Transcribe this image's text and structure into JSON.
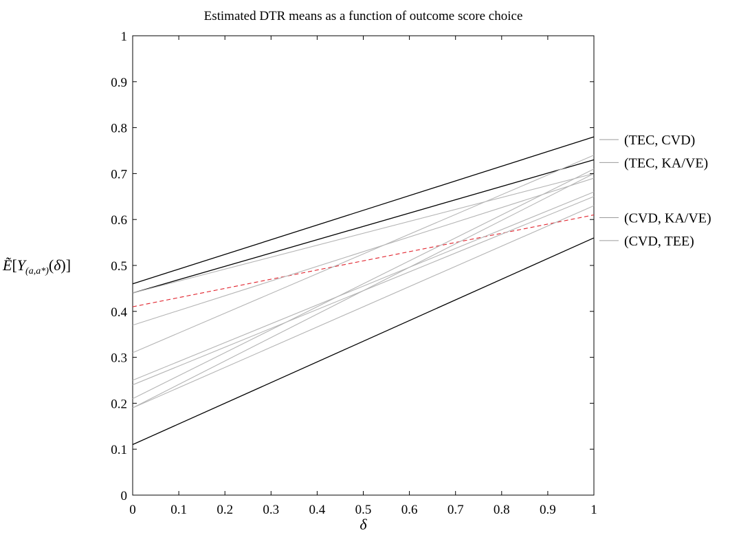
{
  "chart_data": {
    "type": "line",
    "title": "Estimated DTR means as a function of outcome score choice",
    "xlabel": "δ",
    "ylabel": "Ẽ[Y(a,a*)(δ)]",
    "xlim": [
      0,
      1
    ],
    "ylim": [
      0,
      1
    ],
    "grid": false,
    "x_ticks": [
      0,
      0.1,
      0.2,
      0.3,
      0.4,
      0.5,
      0.6,
      0.7,
      0.8,
      0.9,
      1
    ],
    "x_tick_labels": [
      "0",
      "0.1",
      "0.2",
      "0.3",
      "0.4",
      "0.5",
      "0.6",
      "0.7",
      "0.8",
      "0.9",
      "1"
    ],
    "y_ticks": [
      0,
      0.1,
      0.2,
      0.3,
      0.4,
      0.5,
      0.6,
      0.7,
      0.8,
      0.9,
      1
    ],
    "y_tick_labels": [
      "0",
      "0.1",
      "0.2",
      "0.3",
      "0.4",
      "0.5",
      "0.6",
      "0.7",
      "0.8",
      "0.9",
      "1"
    ],
    "legend": {
      "placement": "right",
      "entries": [
        "(TEC, CVD)",
        "(TEC, KA/VE)",
        "(CVD, KA/VE)",
        "(CVD, TEE)"
      ],
      "levels": [
        0.78,
        0.73,
        0.61,
        0.56
      ]
    },
    "series": [
      {
        "x": [
          0,
          1
        ],
        "y": [
          0.46,
          0.78
        ],
        "color": "#000000",
        "style": "solid"
      },
      {
        "x": [
          0,
          1
        ],
        "y": [
          0.44,
          0.73
        ],
        "color": "#000000",
        "style": "solid"
      },
      {
        "x": [
          0,
          1
        ],
        "y": [
          0.11,
          0.56
        ],
        "color": "#000000",
        "style": "solid"
      },
      {
        "x": [
          0,
          1
        ],
        "y": [
          0.41,
          0.61
        ],
        "color": "#e0202a",
        "style": "dashed"
      },
      {
        "x": [
          0,
          1
        ],
        "y": [
          0.44,
          0.7
        ],
        "color": "#b4b4b4",
        "style": "solid"
      },
      {
        "x": [
          0,
          1
        ],
        "y": [
          0.37,
          0.69
        ],
        "color": "#b4b4b4",
        "style": "solid"
      },
      {
        "x": [
          0,
          1
        ],
        "y": [
          0.31,
          0.74
        ],
        "color": "#b4b4b4",
        "style": "solid"
      },
      {
        "x": [
          0,
          1
        ],
        "y": [
          0.25,
          0.66
        ],
        "color": "#b4b4b4",
        "style": "solid"
      },
      {
        "x": [
          0,
          1
        ],
        "y": [
          0.24,
          0.65
        ],
        "color": "#b4b4b4",
        "style": "solid"
      },
      {
        "x": [
          0,
          1
        ],
        "y": [
          0.21,
          0.71
        ],
        "color": "#b4b4b4",
        "style": "solid"
      },
      {
        "x": [
          0,
          1
        ],
        "y": [
          0.19,
          0.7
        ],
        "color": "#b4b4b4",
        "style": "solid"
      },
      {
        "x": [
          0,
          1
        ],
        "y": [
          0.19,
          0.63
        ],
        "color": "#b4b4b4",
        "style": "solid"
      }
    ]
  }
}
